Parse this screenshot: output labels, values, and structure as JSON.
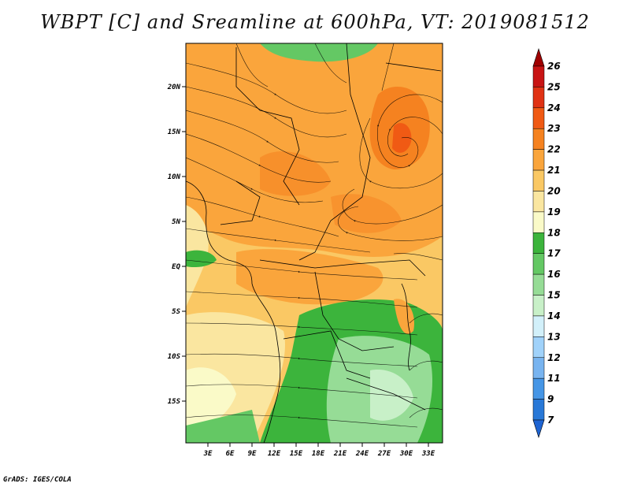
{
  "title": "WBPT [C] and Sreamline at 600hPa, VT: 2019081512",
  "footer": "GrADS: IGES/COLA",
  "y_axis_labels": [
    "20N",
    "15N",
    "10N",
    "5N",
    "EQ",
    "5S",
    "10S",
    "15S"
  ],
  "x_axis_labels": [
    "3E",
    "6E",
    "9E",
    "12E",
    "15E",
    "18E",
    "21E",
    "24E",
    "27E",
    "30E",
    "33E"
  ],
  "colorbar": {
    "labels": [
      "26",
      "25",
      "24",
      "23",
      "22",
      "21",
      "20",
      "19",
      "18",
      "17",
      "16",
      "15",
      "14",
      "13",
      "12",
      "11",
      "9",
      "7"
    ],
    "colors": [
      "#a00000",
      "#c81414",
      "#e03214",
      "#f05a14",
      "#f58220",
      "#faa53c",
      "#fac864",
      "#fae6a0",
      "#fafac8",
      "#3cb43c",
      "#64c864",
      "#96dc96",
      "#c8f0c8",
      "#d2f0fa",
      "#a0d2fa",
      "#78b4f0",
      "#4696e6",
      "#2878d7",
      "#1e64d2"
    ]
  }
}
